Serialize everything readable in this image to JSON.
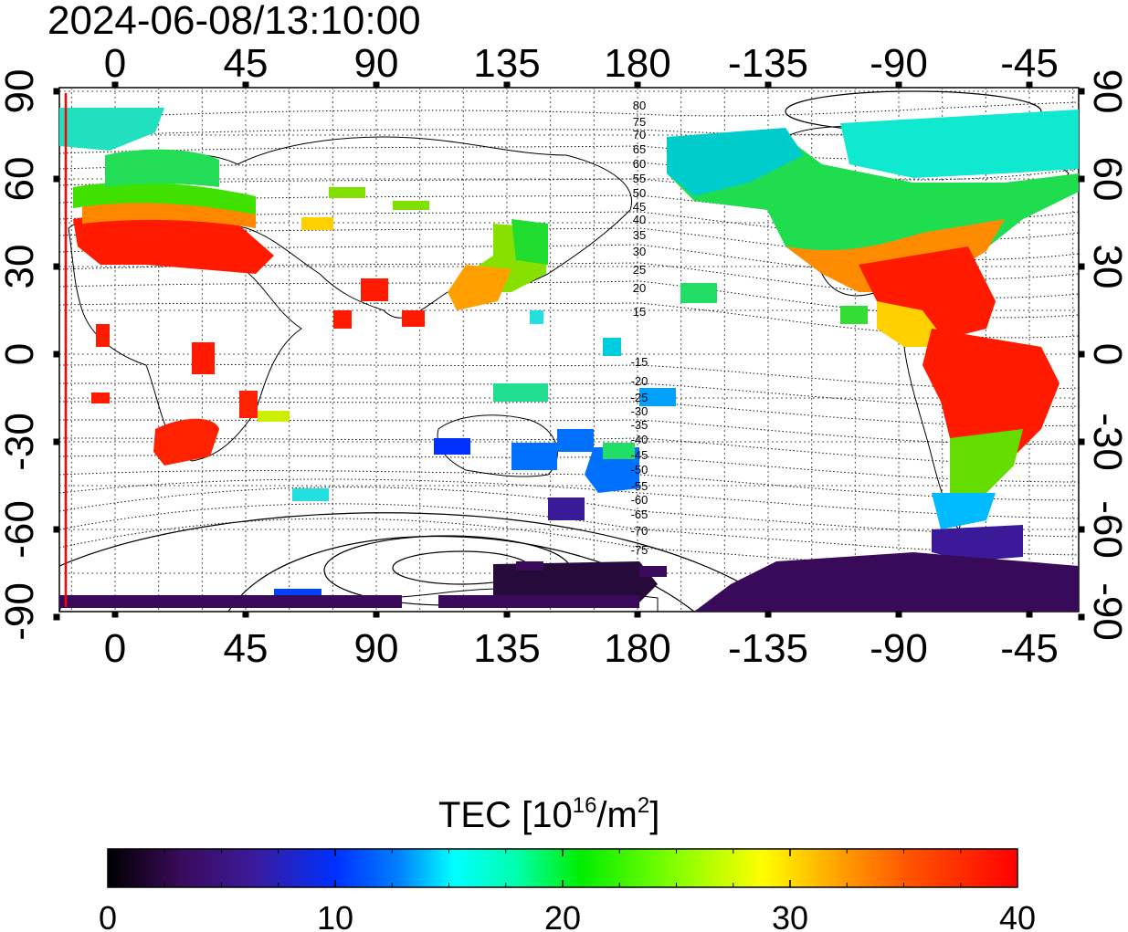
{
  "timestamp": "2024-06-08/13:10:00",
  "top_lon_labels": [
    "0",
    "45",
    "90",
    "135",
    "180",
    "-135",
    "-90",
    "-45"
  ],
  "bottom_lon_labels": [
    "0",
    "45",
    "90",
    "135",
    "180",
    "-135",
    "-90",
    "-45"
  ],
  "left_lat_labels": [
    "90",
    "60",
    "30",
    "0",
    "-30",
    "-60",
    "-90"
  ],
  "right_lat_labels": [
    "90",
    "60",
    "30",
    "0",
    "-30",
    "-60",
    "-90"
  ],
  "contour_labels": [
    "80",
    "75",
    "70",
    "65",
    "60",
    "55",
    "50",
    "45",
    "40",
    "35",
    "30",
    "25",
    "20",
    "15",
    "-15",
    "-20",
    "-25",
    "-30",
    "-35",
    "-40",
    "-45",
    "-50",
    "-55",
    "-60",
    "-65",
    "-70",
    "-75"
  ],
  "colorbar": {
    "title_main": "TEC  [10",
    "title_sup1": "16",
    "title_mid": "/m",
    "title_sup2": "2",
    "title_end": "]",
    "ticks": [
      "0",
      "10",
      "20",
      "30",
      "40"
    ],
    "min": 0,
    "max": 40
  },
  "colors": {
    "marker_line": "#ff0000",
    "low": "#000000",
    "high": "#ff0000"
  }
}
